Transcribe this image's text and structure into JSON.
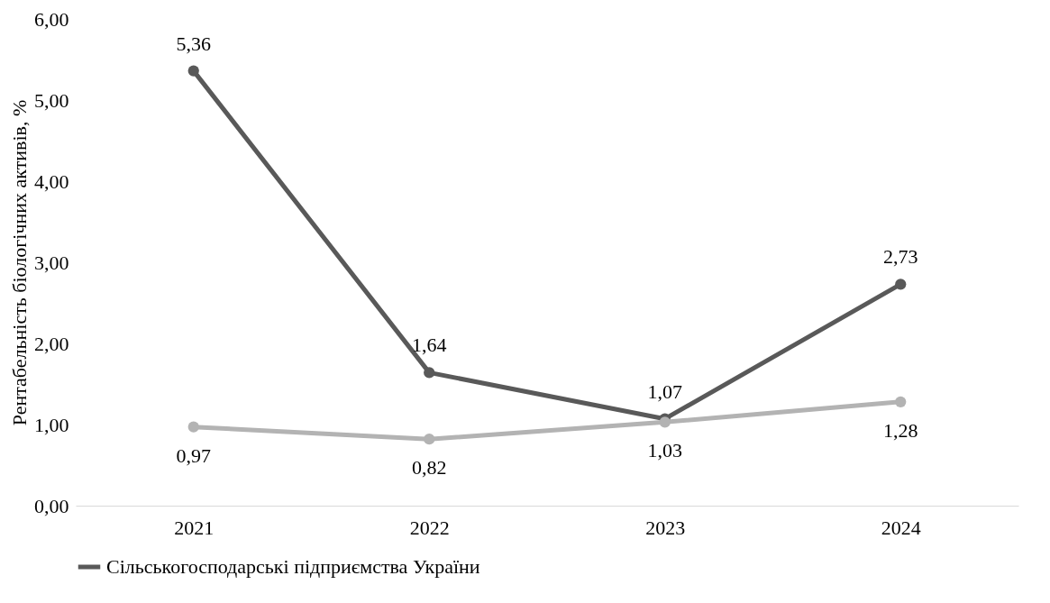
{
  "chart_data": {
    "type": "line",
    "ylabel": "Рентабельність біологічних активів, %",
    "categories": [
      "2021",
      "2022",
      "2023",
      "2024"
    ],
    "series": [
      {
        "name": "Сільськогосподарські підприємства України",
        "color": "#595959",
        "values": [
          5.36,
          1.64,
          1.07,
          2.73
        ],
        "value_labels": [
          "5,36",
          "1,64",
          "1,07",
          "2,73"
        ]
      },
      {
        "color": "#b3b3b3",
        "values": [
          0.97,
          0.82,
          1.03,
          1.28
        ],
        "value_labels": [
          "0,97",
          "0,82",
          "1,03",
          "1,28"
        ]
      }
    ],
    "ylim": [
      0,
      6
    ],
    "yticks": [
      {
        "value": 0,
        "label": "0,00"
      },
      {
        "value": 1,
        "label": "1,00"
      },
      {
        "value": 2,
        "label": "2,00"
      },
      {
        "value": 3,
        "label": "3,00"
      },
      {
        "value": 4,
        "label": "4,00"
      },
      {
        "value": 5,
        "label": "5,00"
      },
      {
        "value": 6,
        "label": "6,00"
      }
    ],
    "grid": false,
    "legend": "bottom",
    "marker": "circle",
    "line_style": "solid"
  }
}
